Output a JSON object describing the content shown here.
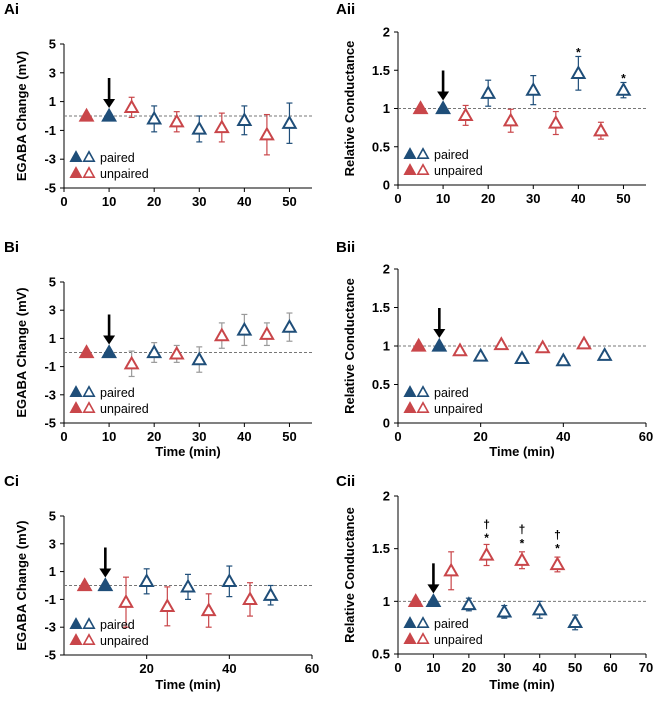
{
  "colors": {
    "paired": "#1f4e79",
    "unpaired": "#c9464a",
    "errbar_light": "#9a9a9a",
    "axis": "#000000",
    "baseline": "#777777"
  },
  "legend": {
    "paired": "paired",
    "unpaired": "unpaired"
  },
  "chart_data": [
    {
      "panel": "Ai",
      "type": "scatter",
      "title": "",
      "xlabel": "",
      "ylabel": "EGABA Change (mV)",
      "xlim": [
        0,
        55
      ],
      "ylim": [
        -5,
        5
      ],
      "xticks": [
        0,
        10,
        20,
        30,
        40,
        50
      ],
      "yticks": [
        5,
        3,
        1,
        -1,
        -3,
        -5
      ],
      "baseline": 0,
      "arrow_x": 10,
      "errbar_style": "dark",
      "series": [
        {
          "name": "paired",
          "filled": [
            [
              10,
              0
            ]
          ],
          "open": [
            [
              20,
              -0.2,
              0.9
            ],
            [
              30,
              -0.9,
              0.9
            ],
            [
              40,
              -0.3,
              1.0
            ],
            [
              50,
              -0.5,
              1.4
            ]
          ]
        },
        {
          "name": "unpaired",
          "filled": [
            [
              5,
              0
            ]
          ],
          "open": [
            [
              15,
              0.6,
              0.7
            ],
            [
              25,
              -0.4,
              0.7
            ],
            [
              35,
              -0.8,
              1.0
            ],
            [
              45,
              -1.3,
              1.4
            ]
          ]
        }
      ],
      "annotations": []
    },
    {
      "panel": "Aii",
      "type": "scatter",
      "title": "",
      "xlabel": "",
      "ylabel": "Relative Conductance",
      "xlim": [
        0,
        55
      ],
      "ylim": [
        0,
        2
      ],
      "xticks": [
        0,
        10,
        20,
        30,
        40,
        50
      ],
      "yticks": [
        0,
        0.5,
        1,
        1.5,
        2
      ],
      "baseline": 1,
      "arrow_x": 10,
      "errbar_style": "dark",
      "series": [
        {
          "name": "paired",
          "filled": [
            [
              10,
              1.0
            ]
          ],
          "open": [
            [
              20,
              1.2,
              0.17
            ],
            [
              30,
              1.24,
              0.19
            ],
            [
              40,
              1.46,
              0.22
            ],
            [
              50,
              1.24,
              0.1
            ]
          ]
        },
        {
          "name": "unpaired",
          "filled": [
            [
              5,
              1.0
            ]
          ],
          "open": [
            [
              15,
              0.91,
              0.13
            ],
            [
              25,
              0.84,
              0.15
            ],
            [
              35,
              0.81,
              0.15
            ],
            [
              45,
              0.71,
              0.11
            ]
          ]
        }
      ],
      "annotations": [
        {
          "x": 40,
          "y": 1.73,
          "text": "*"
        },
        {
          "x": 50,
          "y": 1.39,
          "text": "*"
        }
      ]
    },
    {
      "panel": "Bi",
      "type": "scatter",
      "title": "",
      "xlabel": "Time (min)",
      "ylabel": "EGABA Change (mV)",
      "xlim": [
        0,
        55
      ],
      "ylim": [
        -5,
        5
      ],
      "xticks": [
        0,
        10,
        20,
        30,
        40,
        50
      ],
      "yticks": [
        5,
        3,
        1,
        -1,
        -3,
        -5
      ],
      "baseline": 0,
      "arrow_x": 10,
      "errbar_style": "light",
      "series": [
        {
          "name": "paired",
          "filled": [
            [
              10,
              0
            ]
          ],
          "open": [
            [
              20,
              0,
              0.7
            ],
            [
              30,
              -0.5,
              0.9
            ],
            [
              40,
              1.6,
              1.1
            ],
            [
              50,
              1.8,
              1.0
            ]
          ]
        },
        {
          "name": "unpaired",
          "filled": [
            [
              5,
              0
            ]
          ],
          "open": [
            [
              15,
              -0.8,
              0.9
            ],
            [
              25,
              -0.1,
              0.6
            ],
            [
              35,
              1.2,
              0.9
            ],
            [
              45,
              1.3,
              0.8
            ]
          ]
        }
      ],
      "annotations": []
    },
    {
      "panel": "Bii",
      "type": "scatter",
      "title": "",
      "xlabel": "Time (min)",
      "ylabel": "Relative Conductance",
      "xlim": [
        0,
        60
      ],
      "ylim": [
        0,
        2
      ],
      "xticks": [
        0,
        20,
        40,
        60
      ],
      "yticks": [
        0,
        0.5,
        1,
        1.5,
        2
      ],
      "baseline": 1,
      "arrow_x": 10,
      "errbar_style": "none",
      "series": [
        {
          "name": "paired",
          "filled": [
            [
              10,
              1.0
            ]
          ],
          "open": [
            [
              20,
              0.87,
              0
            ],
            [
              30,
              0.84,
              0
            ],
            [
              40,
              0.81,
              0
            ],
            [
              50,
              0.88,
              0
            ]
          ]
        },
        {
          "name": "unpaired",
          "filled": [
            [
              5,
              1.0
            ]
          ],
          "open": [
            [
              15,
              0.94,
              0
            ],
            [
              25,
              1.02,
              0
            ],
            [
              35,
              0.98,
              0
            ],
            [
              45,
              1.03,
              0
            ]
          ]
        }
      ],
      "annotations": []
    },
    {
      "panel": "Ci",
      "type": "scatter",
      "title": "",
      "xlabel": "Time (min)",
      "ylabel": "EGABA Change (mV)",
      "xlim": [
        0,
        60
      ],
      "ylim": [
        -5,
        5
      ],
      "xticks": [
        20,
        40,
        60
      ],
      "yticks": [
        5,
        3,
        1,
        -1,
        -3,
        -5
      ],
      "baseline": 0,
      "arrow_x": 10,
      "errbar_style": "dark",
      "series": [
        {
          "name": "paired",
          "filled": [
            [
              10,
              0
            ]
          ],
          "open": [
            [
              20,
              0.3,
              0.9
            ],
            [
              30,
              -0.1,
              0.9
            ],
            [
              40,
              0.3,
              1.1
            ],
            [
              50,
              -0.7,
              0.7
            ]
          ]
        },
        {
          "name": "unpaired",
          "filled": [
            [
              5,
              0
            ]
          ],
          "open": [
            [
              15,
              -1.2,
              1.8
            ],
            [
              25,
              -1.5,
              1.4
            ],
            [
              35,
              -1.8,
              1.2
            ],
            [
              45,
              -1.0,
              1.2
            ]
          ]
        }
      ],
      "annotations": []
    },
    {
      "panel": "Cii",
      "type": "scatter",
      "title": "",
      "xlabel": "Time (min)",
      "ylabel": "Relative Conductance",
      "xlim": [
        0,
        70
      ],
      "ylim": [
        0.5,
        2
      ],
      "xticks": [
        0,
        10,
        20,
        30,
        40,
        50,
        60,
        70
      ],
      "yticks": [
        0.5,
        1,
        1.5,
        2
      ],
      "baseline": 1,
      "arrow_x": 10,
      "errbar_style": "dark",
      "series": [
        {
          "name": "paired",
          "filled": [
            [
              10,
              1.0
            ]
          ],
          "open": [
            [
              20,
              0.97,
              0.06
            ],
            [
              30,
              0.9,
              0.06
            ],
            [
              40,
              0.92,
              0.08
            ],
            [
              50,
              0.8,
              0.07
            ]
          ]
        },
        {
          "name": "unpaired",
          "filled": [
            [
              5,
              1.0
            ]
          ],
          "open": [
            [
              15,
              1.29,
              0.18
            ],
            [
              25,
              1.44,
              0.1
            ],
            [
              35,
              1.39,
              0.08
            ],
            [
              45,
              1.35,
              0.07
            ]
          ]
        }
      ],
      "annotations": [
        {
          "x": 25,
          "y": 1.6,
          "text": "*"
        },
        {
          "x": 25,
          "y": 1.73,
          "text": "†"
        },
        {
          "x": 35,
          "y": 1.55,
          "text": "*"
        },
        {
          "x": 35,
          "y": 1.68,
          "text": "†"
        },
        {
          "x": 45,
          "y": 1.5,
          "text": "*"
        },
        {
          "x": 45,
          "y": 1.63,
          "text": "†"
        }
      ]
    }
  ]
}
